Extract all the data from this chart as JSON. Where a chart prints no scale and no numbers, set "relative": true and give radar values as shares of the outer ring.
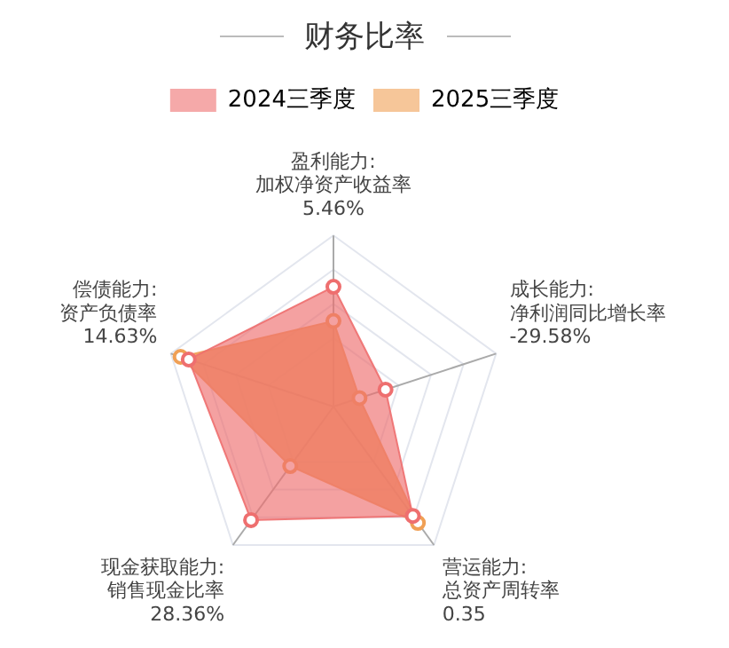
{
  "chart_data": {
    "type": "radar",
    "title": "财务比率",
    "relative": true,
    "grid": true,
    "legend": "top",
    "marker": "circle",
    "categories": [
      "盈利能力:\n加权净资产收益率\n5.46%",
      "成长能力:\n净利润同比增长率\n-29.58%",
      "营运能力:\n总资产周转率\n0.35",
      "现金获取能力:\n销售现金比率\n28.36%",
      "偿债能力:\n资产负债率\n14.63%"
    ],
    "series": [
      {
        "name": "2024三季度",
        "color": "#ee6f6f",
        "values": [
          0.7,
          0.32,
          0.79,
          0.82,
          0.89
        ]
      },
      {
        "name": "2025三季度",
        "color": "#f0a055",
        "values": [
          0.5,
          0.16,
          0.84,
          0.43,
          0.94
        ]
      }
    ]
  }
}
